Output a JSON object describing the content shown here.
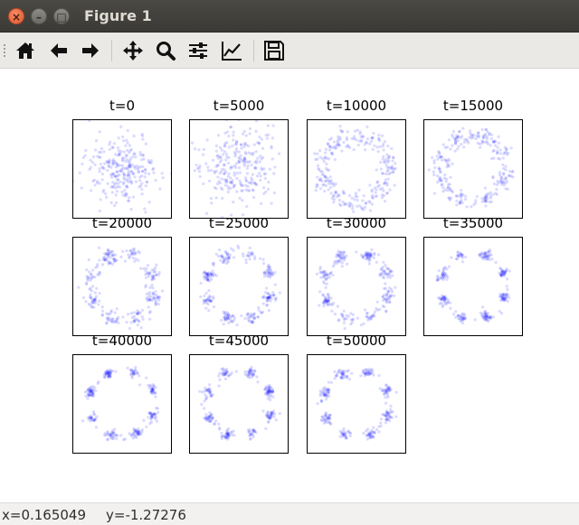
{
  "window": {
    "title": "Figure 1"
  },
  "toolbar": {
    "buttons": [
      {
        "name": "home-icon"
      },
      {
        "name": "back-arrow-icon"
      },
      {
        "name": "forward-arrow-icon"
      },
      {
        "name": "pan-icon"
      },
      {
        "name": "zoom-icon"
      },
      {
        "name": "configure-subplots-icon"
      },
      {
        "name": "edit-axis-icon"
      },
      {
        "name": "save-icon"
      }
    ]
  },
  "figure": {
    "point_color": "#0000ff",
    "subplots": [
      {
        "title": "t=0"
      },
      {
        "title": "t=5000"
      },
      {
        "title": "t=10000"
      },
      {
        "title": "t=15000"
      },
      {
        "title": "t=20000"
      },
      {
        "title": "t=25000"
      },
      {
        "title": "t=30000"
      },
      {
        "title": "t=35000"
      },
      {
        "title": "t=40000"
      },
      {
        "title": "t=45000"
      },
      {
        "title": "t=50000"
      }
    ]
  },
  "chart_data": {
    "type": "scatter",
    "panels": [
      {
        "t": 0,
        "pattern": "gaussian-blob"
      },
      {
        "t": 5000,
        "pattern": "irregular-blob"
      },
      {
        "t": 10000,
        "pattern": "ring"
      },
      {
        "t": 15000,
        "pattern": "ring-forming-clusters"
      },
      {
        "t": 20000,
        "pattern": "ring-8-clusters-diffuse"
      },
      {
        "t": 25000,
        "pattern": "ring-8-clusters"
      },
      {
        "t": 30000,
        "pattern": "ring-8-clusters"
      },
      {
        "t": 35000,
        "pattern": "ring-8-clusters-tight"
      },
      {
        "t": 40000,
        "pattern": "ring-8-clusters-tight"
      },
      {
        "t": 45000,
        "pattern": "ring-8-clusters-tight"
      },
      {
        "t": 50000,
        "pattern": "ring-8-clusters-tight"
      }
    ],
    "cluster_count": 8,
    "axes_ticks": false
  },
  "statusbar": {
    "x_readout": "x=0.165049",
    "y_readout": "y=-1.27276"
  }
}
